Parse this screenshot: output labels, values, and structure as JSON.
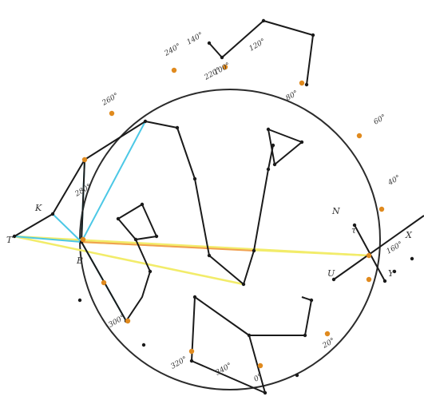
{
  "colors": {
    "ink": "#1a1a1a",
    "circle": "#2b2b2b",
    "node": "#e08a1e",
    "cyan": "#4cc8e6",
    "yellow": "#f2ec6a",
    "orange": "#f0a050"
  },
  "rim_labels": [
    {
      "id": "rim-label-1",
      "text": "220°"
    },
    {
      "id": "rim-label-2",
      "text": "240°"
    },
    {
      "id": "rim-label-3",
      "text": "260°"
    },
    {
      "id": "rim-label-4",
      "text": "280°"
    },
    {
      "id": "rim-label-5",
      "text": "300°"
    },
    {
      "id": "rim-label-6",
      "text": "320°"
    },
    {
      "id": "rim-label-7",
      "text": "340°"
    },
    {
      "id": "rim-label-8",
      "text": "0°"
    },
    {
      "id": "rim-label-9",
      "text": "20°"
    },
    {
      "id": "rim-label-10",
      "text": "40°"
    },
    {
      "id": "rim-label-11",
      "text": "60°"
    },
    {
      "id": "rim-label-12",
      "text": "80°"
    },
    {
      "id": "rim-label-13",
      "text": "100°"
    },
    {
      "id": "rim-label-14",
      "text": "120°"
    },
    {
      "id": "rim-label-15",
      "text": "140°"
    },
    {
      "id": "rim-label-16",
      "text": "160°"
    }
  ],
  "point_labels": [
    {
      "id": "label-t",
      "text": "T"
    },
    {
      "id": "label-k-left",
      "text": "K"
    },
    {
      "id": "label-b",
      "text": "B"
    },
    {
      "id": "label-u",
      "text": "U"
    },
    {
      "id": "label-tau",
      "text": "τ"
    },
    {
      "id": "label-n-right",
      "text": "N"
    },
    {
      "id": "label-x-right",
      "text": "X"
    },
    {
      "id": "label-y-right",
      "text": "Y"
    }
  ]
}
